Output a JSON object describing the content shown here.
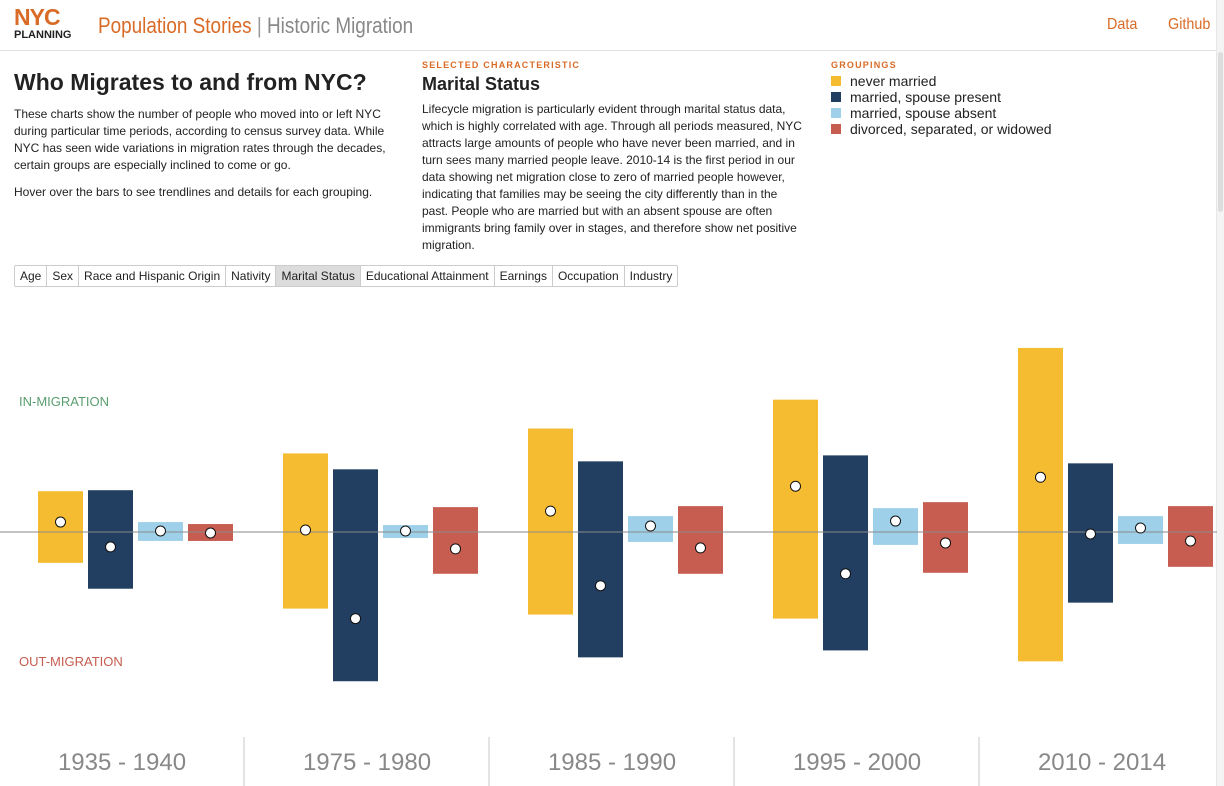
{
  "header": {
    "logo_top": "NYC",
    "logo_bottom": "PLANNING",
    "app_title": "Population Stories",
    "separator": "|",
    "subtitle": "Historic Migration",
    "nav": {
      "data_label": "Data",
      "github_label": "Github"
    }
  },
  "intro": {
    "title": "Who Migrates to and from NYC?",
    "paragraph": "These charts show the number of people who moved into or left NYC during particular time periods, according to census survey data. While NYC has seen wide variations in migration rates through the decades, certain groups are especially inclined to come or go.",
    "hover_hint": "Hover over the bars to see trendlines and details for each grouping."
  },
  "selected": {
    "kicker": "SELECTED CHARACTERISTIC",
    "title": "Marital Status",
    "description": "Lifecycle migration is particularly evident through marital status data, which is highly correlated with age. Through all periods measured, NYC attracts large amounts of people who have never been married, and in turn sees many married people leave. 2010-14 is the first period in our data showing net migration close to zero of married people however, indicating that families may be seeing the city differently than in the past. People who are married but with an absent spouse are often immigrants bring family over in stages, and therefore show net positive migration."
  },
  "groupings": {
    "kicker": "GROUPINGS",
    "items": [
      {
        "label": "never married",
        "color": "#f5bc31"
      },
      {
        "label": "married, spouse present",
        "color": "#223f62"
      },
      {
        "label": "married, spouse absent",
        "color": "#9fd0ea"
      },
      {
        "label": "divorced, separated, or widowed",
        "color": "#c65d50"
      }
    ]
  },
  "tabs": [
    {
      "label": "Age",
      "active": false
    },
    {
      "label": "Sex",
      "active": false
    },
    {
      "label": "Race and Hispanic Origin",
      "active": false
    },
    {
      "label": "Nativity",
      "active": false
    },
    {
      "label": "Marital Status",
      "active": true
    },
    {
      "label": "Educational Attainment",
      "active": false
    },
    {
      "label": "Earnings",
      "active": false
    },
    {
      "label": "Occupation",
      "active": false
    },
    {
      "label": "Industry",
      "active": false
    }
  ],
  "chart_labels": {
    "in_migration": "IN-MIGRATION",
    "out_migration": "OUT-MIGRATION",
    "in_color": "#5a9e6f",
    "out_color": "#c65d50"
  },
  "chart_data": {
    "type": "bar",
    "categories": [
      "1935 - 1940",
      "1975 - 1980",
      "1985 - 1990",
      "1995 - 2000",
      "2010 - 2014"
    ],
    "series": [
      {
        "name": "never married",
        "in": [
          41,
          79,
          104,
          133,
          185
        ],
        "out": [
          31,
          77,
          83,
          87,
          130
        ],
        "net": [
          10,
          2,
          21,
          46,
          55
        ]
      },
      {
        "name": "married, spouse present",
        "in": [
          42,
          63,
          71,
          77,
          69
        ],
        "out": [
          57,
          150,
          126,
          119,
          71
        ],
        "net": [
          -15,
          -87,
          -54,
          -42,
          -2
        ]
      },
      {
        "name": "married, spouse absent",
        "in": [
          10,
          7,
          16,
          24,
          16
        ],
        "out": [
          9,
          6,
          10,
          13,
          12
        ],
        "net": [
          1,
          1,
          6,
          11,
          4
        ]
      },
      {
        "name": "divorced, separated, or widowed",
        "in": [
          8,
          25,
          26,
          30,
          26
        ],
        "out": [
          9,
          42,
          42,
          41,
          35
        ],
        "net": [
          -1,
          -17,
          -16,
          -11,
          -9
        ]
      }
    ],
    "center_line": "zero baseline, in-migration above, out-migration below",
    "legend": "top-right"
  }
}
